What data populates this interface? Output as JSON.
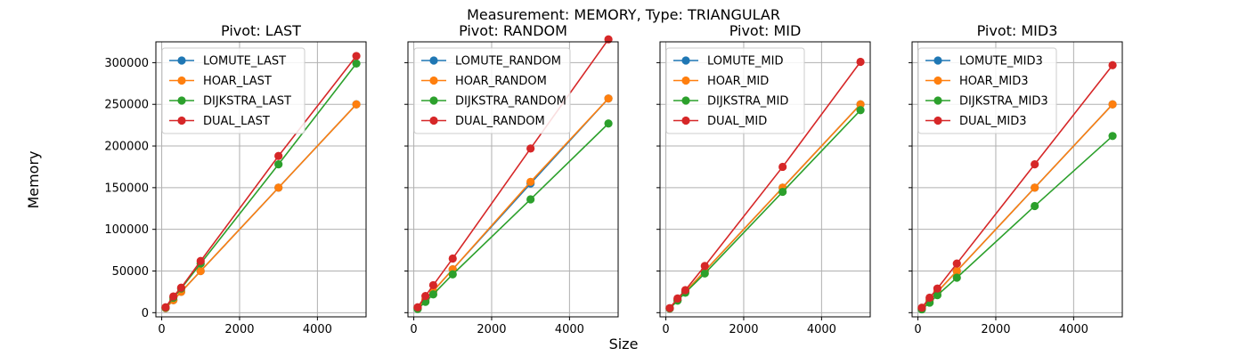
{
  "figure": {
    "suptitle": "Measurement: MEMORY, Type: TRIANGULAR",
    "xlabel": "Size",
    "ylabel": "Memory"
  },
  "colors": {
    "LOMUTE": "#1f77b4",
    "HOAR": "#ff7f0e",
    "DIJKSTRA": "#2ca02c",
    "DUAL": "#d62728",
    "grid": "#b0b0b0"
  },
  "chart_data": [
    {
      "type": "line",
      "title": "Pivot: LAST",
      "x": [
        100,
        300,
        500,
        1000,
        3000,
        5000
      ],
      "xlim": [
        -150,
        5250
      ],
      "ylim": [
        -5000,
        325000
      ],
      "xticks": [
        0,
        2000,
        4000
      ],
      "yticks": [
        0,
        50000,
        100000,
        150000,
        200000,
        250000,
        300000
      ],
      "grid": true,
      "legend": "top-left",
      "series": [
        {
          "name": "LOMUTE_LAST",
          "key": "LOMUTE",
          "values": [
            5500,
            15000,
            25000,
            50000,
            150000,
            250000
          ]
        },
        {
          "name": "HOAR_LAST",
          "key": "HOAR",
          "values": [
            5500,
            15000,
            25000,
            50000,
            150000,
            250000
          ]
        },
        {
          "name": "DIJKSTRA_LAST",
          "key": "DIJKSTRA",
          "values": [
            6000,
            18000,
            29000,
            59000,
            178000,
            299000
          ]
        },
        {
          "name": "DUAL_LAST",
          "key": "DUAL",
          "values": [
            6500,
            19500,
            30000,
            62000,
            188000,
            308000
          ]
        }
      ]
    },
    {
      "type": "line",
      "title": "Pivot: RANDOM",
      "x": [
        100,
        300,
        500,
        1000,
        3000,
        5000
      ],
      "xlim": [
        -150,
        5250
      ],
      "ylim": [
        -5000,
        325000
      ],
      "xticks": [
        0,
        2000,
        4000
      ],
      "yticks": [
        0,
        50000,
        100000,
        150000,
        200000,
        250000,
        300000
      ],
      "grid": true,
      "legend": "top-left",
      "series": [
        {
          "name": "LOMUTE_RANDOM",
          "key": "LOMUTE",
          "values": [
            5500,
            16000,
            26000,
            52000,
            155000,
            257000
          ]
        },
        {
          "name": "HOAR_RANDOM",
          "key": "HOAR",
          "values": [
            5500,
            16000,
            26000,
            52000,
            157000,
            257000
          ]
        },
        {
          "name": "DIJKSTRA_RANDOM",
          "key": "DIJKSTRA",
          "values": [
            4500,
            13000,
            22000,
            46000,
            136000,
            227000
          ]
        },
        {
          "name": "DUAL_RANDOM",
          "key": "DUAL",
          "values": [
            6500,
            20000,
            33000,
            65000,
            197000,
            328000
          ]
        }
      ]
    },
    {
      "type": "line",
      "title": "Pivot: MID",
      "x": [
        100,
        300,
        500,
        1000,
        3000,
        5000
      ],
      "xlim": [
        -150,
        5250
      ],
      "ylim": [
        -5000,
        325000
      ],
      "xticks": [
        0,
        2000,
        4000
      ],
      "yticks": [
        0,
        50000,
        100000,
        150000,
        200000,
        250000,
        300000
      ],
      "grid": true,
      "legend": "top-left",
      "series": [
        {
          "name": "LOMUTE_MID",
          "key": "LOMUTE",
          "values": [
            5000,
            15000,
            25000,
            50000,
            150000,
            250000
          ]
        },
        {
          "name": "HOAR_MID",
          "key": "HOAR",
          "values": [
            5000,
            15000,
            25000,
            50000,
            150000,
            250000
          ]
        },
        {
          "name": "DIJKSTRA_MID",
          "key": "DIJKSTRA",
          "values": [
            5000,
            14500,
            24000,
            47000,
            145000,
            243000
          ]
        },
        {
          "name": "DUAL_MID",
          "key": "DUAL",
          "values": [
            5500,
            17000,
            27000,
            56000,
            175000,
            301000
          ]
        }
      ]
    },
    {
      "type": "line",
      "title": "Pivot: MID3",
      "x": [
        100,
        300,
        500,
        1000,
        3000,
        5000
      ],
      "xlim": [
        -150,
        5250
      ],
      "ylim": [
        -5000,
        325000
      ],
      "xticks": [
        0,
        2000,
        4000
      ],
      "yticks": [
        0,
        50000,
        100000,
        150000,
        200000,
        250000,
        300000
      ],
      "grid": true,
      "legend": "top-left",
      "series": [
        {
          "name": "LOMUTE_MID3",
          "key": "LOMUTE",
          "values": [
            5000,
            15000,
            25000,
            50000,
            150000,
            250000
          ]
        },
        {
          "name": "HOAR_MID3",
          "key": "HOAR",
          "values": [
            5000,
            15000,
            25000,
            50000,
            150000,
            250000
          ]
        },
        {
          "name": "DIJKSTRA_MID3",
          "key": "DIJKSTRA",
          "values": [
            4000,
            12000,
            21000,
            42000,
            128000,
            212000
          ]
        },
        {
          "name": "DUAL_MID3",
          "key": "DUAL",
          "values": [
            6000,
            18000,
            29000,
            59000,
            178000,
            297000
          ]
        }
      ]
    }
  ]
}
